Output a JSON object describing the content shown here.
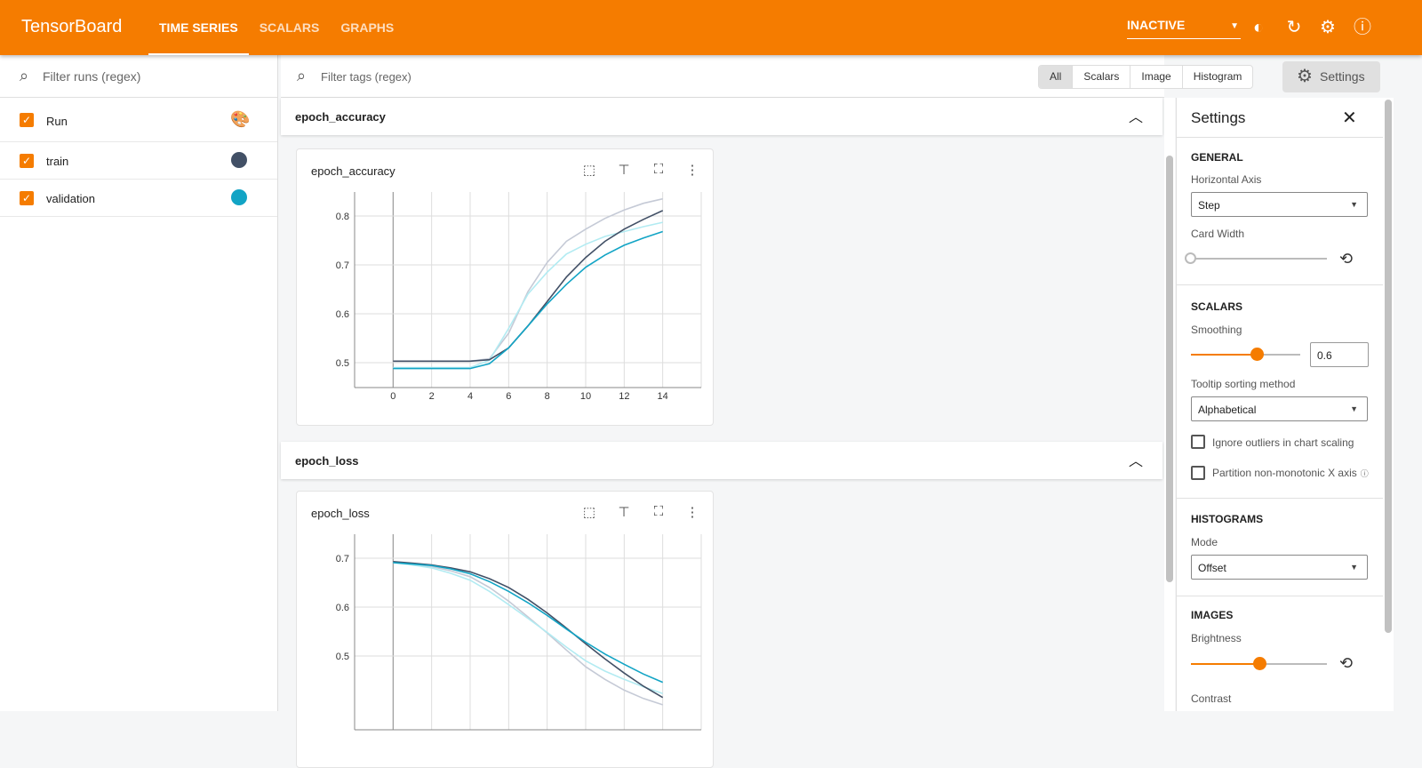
{
  "header": {
    "title": "TensorBoard",
    "tabs": [
      {
        "label": "TIME SERIES",
        "active": true
      },
      {
        "label": "SCALARS"
      },
      {
        "label": "GRAPHS"
      }
    ],
    "run_selector": "INACTIVE",
    "icons": [
      "brightness-icon",
      "refresh-icon",
      "gear-icon",
      "help-icon"
    ]
  },
  "sidebar": {
    "filter_placeholder": "Filter runs (regex)",
    "header_label": "Run",
    "runs": [
      {
        "name": "train",
        "color": "#425066",
        "checked": true
      },
      {
        "name": "validation",
        "color": "#12a4c5",
        "checked": true
      }
    ]
  },
  "toolbar": {
    "filter_placeholder": "Filter tags (regex)",
    "filters": [
      "All",
      "Scalars",
      "Image",
      "Histogram"
    ],
    "active_filter": "All",
    "settings_label": "Settings"
  },
  "groups": [
    {
      "name": "epoch_accuracy"
    },
    {
      "name": "epoch_loss"
    }
  ],
  "settings": {
    "title": "Settings",
    "general": {
      "heading": "GENERAL",
      "horizontal_axis_label": "Horizontal Axis",
      "horizontal_axis_value": "Step",
      "card_width_label": "Card Width",
      "card_width_level": 0
    },
    "scalars": {
      "heading": "SCALARS",
      "smoothing_label": "Smoothing",
      "smoothing_value": "0.6",
      "tooltip_sort_label": "Tooltip sorting method",
      "tooltip_sort_value": "Alphabetical",
      "ignore_outliers_label": "Ignore outliers in chart scaling",
      "ignore_outliers": false,
      "partition_label": "Partition non-monotonic X axis",
      "partition": false
    },
    "histograms": {
      "heading": "HISTOGRAMS",
      "mode_label": "Mode",
      "mode_value": "Offset"
    },
    "images": {
      "heading": "IMAGES",
      "brightness_label": "Brightness",
      "brightness_level": 0.5,
      "contrast_label": "Contrast"
    }
  },
  "chart_data": [
    {
      "type": "line",
      "title": "epoch_accuracy",
      "x": [
        0,
        1,
        2,
        3,
        4,
        5,
        6,
        7,
        8,
        9,
        10,
        11,
        12,
        13,
        14
      ],
      "xlim": [
        -2,
        16
      ],
      "ylim": [
        0.449,
        0.849
      ],
      "xticks": [
        "0",
        "2",
        "4",
        "6",
        "8",
        "10",
        "12",
        "14"
      ],
      "yticks": [
        "0.5",
        "0.6",
        "0.7",
        "0.8"
      ],
      "grid": true,
      "series": [
        {
          "name": "train",
          "raw": true,
          "color": "#c5cad6",
          "values": [
            0.503,
            0.503,
            0.503,
            0.503,
            0.503,
            0.508,
            0.56,
            0.645,
            0.705,
            0.748,
            0.773,
            0.795,
            0.812,
            0.826,
            0.835
          ]
        },
        {
          "name": "validation",
          "raw": true,
          "color": "#b2ebf2",
          "values": [
            0.49,
            0.49,
            0.49,
            0.49,
            0.49,
            0.505,
            0.57,
            0.64,
            0.685,
            0.722,
            0.742,
            0.758,
            0.768,
            0.778,
            0.787
          ]
        },
        {
          "name": "train",
          "color": "#425066",
          "values": [
            0.503,
            0.503,
            0.503,
            0.503,
            0.503,
            0.506,
            0.53,
            0.575,
            0.625,
            0.675,
            0.715,
            0.748,
            0.773,
            0.793,
            0.811
          ]
        },
        {
          "name": "validation",
          "color": "#12a4c5",
          "values": [
            0.488,
            0.488,
            0.488,
            0.488,
            0.488,
            0.498,
            0.53,
            0.575,
            0.62,
            0.66,
            0.695,
            0.72,
            0.74,
            0.755,
            0.768
          ]
        }
      ]
    },
    {
      "type": "line",
      "title": "epoch_loss",
      "x": [
        0,
        1,
        2,
        3,
        4,
        5,
        6,
        7,
        8,
        9,
        10,
        11,
        12,
        13,
        14
      ],
      "xlim": [
        -2,
        16
      ],
      "ylim": [
        0.349,
        0.749
      ],
      "yticks": [
        "0.5",
        "0.6",
        "0.7"
      ],
      "grid": true,
      "series": [
        {
          "name": "train",
          "raw": true,
          "color": "#c5cad6",
          "values": [
            0.692,
            0.688,
            0.683,
            0.674,
            0.662,
            0.64,
            0.612,
            0.58,
            0.547,
            0.512,
            0.478,
            0.452,
            0.43,
            0.413,
            0.4
          ]
        },
        {
          "name": "validation",
          "raw": true,
          "color": "#b2ebf2",
          "values": [
            0.691,
            0.686,
            0.68,
            0.669,
            0.655,
            0.632,
            0.605,
            0.577,
            0.548,
            0.518,
            0.49,
            0.469,
            0.452,
            0.437,
            0.423
          ]
        },
        {
          "name": "train",
          "color": "#425066",
          "values": [
            0.693,
            0.69,
            0.686,
            0.68,
            0.672,
            0.658,
            0.64,
            0.616,
            0.588,
            0.557,
            0.525,
            0.494,
            0.465,
            0.438,
            0.415
          ]
        },
        {
          "name": "validation",
          "color": "#12a4c5",
          "values": [
            0.691,
            0.688,
            0.685,
            0.678,
            0.668,
            0.652,
            0.632,
            0.609,
            0.583,
            0.555,
            0.528,
            0.504,
            0.483,
            0.463,
            0.446
          ]
        }
      ]
    }
  ]
}
